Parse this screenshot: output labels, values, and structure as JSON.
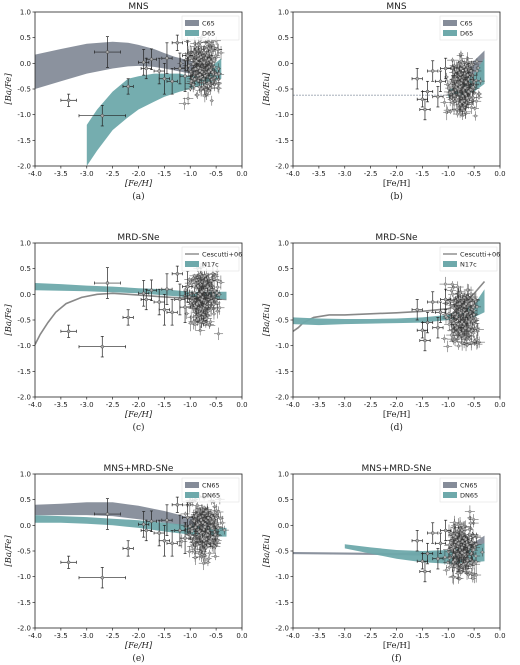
{
  "chart_data": [
    {
      "id": "a",
      "type": "band-scatter",
      "title": "MNS",
      "xlabel": "[Fe/H]",
      "ylabel": "[Ba/Fe]",
      "caption": "(a)",
      "xlim": [
        -4.0,
        0.0
      ],
      "ylim": [
        -2.0,
        1.0
      ],
      "xticks": [
        "-4.0",
        "-3.5",
        "-3.0",
        "-2.5",
        "-2.0",
        "-1.5",
        "-1.0",
        "-0.5",
        "0.0"
      ],
      "yticks": [
        "-2.0",
        "-1.5",
        "-1.0",
        "-0.5",
        "0.0",
        "0.5",
        "1.0"
      ],
      "legend": {
        "position": "top-right"
      },
      "series": [
        {
          "name": "C65",
          "kind": "band",
          "color": "#858c99",
          "x": [
            -4.0,
            -3.5,
            -3.0,
            -2.5,
            -2.2,
            -2.0,
            -1.7,
            -1.5,
            -1.3,
            -1.0,
            -0.8
          ],
          "upper": [
            0.17,
            0.28,
            0.38,
            0.42,
            0.4,
            0.36,
            0.28,
            0.2,
            0.13,
            0.05,
            0.0
          ],
          "lower": [
            -0.5,
            -0.35,
            -0.2,
            -0.1,
            -0.06,
            -0.05,
            -0.07,
            -0.1,
            -0.14,
            -0.2,
            -0.2
          ]
        },
        {
          "name": "D65",
          "kind": "band",
          "color": "#6ea9ab",
          "x": [
            -3.0,
            -2.8,
            -2.5,
            -2.2,
            -2.0,
            -1.7,
            -1.5,
            -1.2,
            -1.0,
            -0.7,
            -0.4
          ],
          "upper": [
            -1.2,
            -0.9,
            -0.55,
            -0.3,
            -0.25,
            -0.2,
            -0.2,
            -0.2,
            -0.25,
            -0.15,
            0.1
          ],
          "lower": [
            -2.0,
            -1.7,
            -1.3,
            -1.05,
            -0.9,
            -0.75,
            -0.65,
            -0.55,
            -0.5,
            -0.4,
            -0.3
          ]
        }
      ],
      "points": {
        "x": [
          -3.35,
          -2.7,
          -2.6,
          -2.2,
          -1.9,
          -1.85,
          -1.75,
          -1.6,
          -1.5,
          -1.45,
          -1.35,
          -1.25,
          -1.2,
          -1.1,
          -1.05
        ],
        "y": [
          -0.72,
          -1.02,
          0.22,
          -0.45,
          0.02,
          -0.1,
          0.08,
          -0.15,
          -0.3,
          0.1,
          -0.35,
          0.4,
          -0.1,
          -0.25,
          0.15
        ],
        "xerr": [
          0.15,
          0.45,
          0.25,
          0.1,
          0.1,
          0.1,
          0.1,
          0.1,
          0.1,
          0.1,
          0.1,
          0.1,
          0.1,
          0.1,
          0.1
        ],
        "yerr": [
          0.12,
          0.2,
          0.3,
          0.15,
          0.25,
          0.2,
          0.2,
          0.25,
          0.3,
          0.3,
          0.25,
          0.15,
          0.3,
          0.3,
          0.3
        ]
      },
      "cloud": {
        "x": [
          -1.2,
          -0.3
        ],
        "y": [
          -1.1,
          0.65
        ]
      }
    },
    {
      "id": "b",
      "type": "band-scatter",
      "title": "MNS",
      "xlabel": "[Fe/H]",
      "ylabel": "[Ba/Eu]",
      "caption": "(b)",
      "xlim": [
        -4.0,
        0.0
      ],
      "ylim": [
        -2.0,
        1.0
      ],
      "xticks": [
        "-4.0",
        "-3.5",
        "-3.0",
        "-2.5",
        "-2.0",
        "-1.5",
        "-1.0",
        "-0.5",
        "0.0"
      ],
      "yticks": [
        "-2.0",
        "-1.5",
        "-1.0",
        "-0.5",
        "0.0",
        "0.5",
        "1.0"
      ],
      "legend": {
        "position": "top-right"
      },
      "series": [
        {
          "name": "C65",
          "kind": "band",
          "color": "#858c99",
          "x": [
            -0.7,
            -0.5,
            -0.3
          ],
          "upper": [
            -0.2,
            0.05,
            0.25
          ],
          "lower": [
            -0.55,
            -0.45,
            -0.35
          ]
        },
        {
          "name": "D65",
          "kind": "band",
          "color": "#6ea9ab",
          "x": [
            -1.0,
            -0.7,
            -0.5,
            -0.3
          ],
          "upper": [
            -0.52,
            -0.4,
            -0.2,
            0.1
          ],
          "lower": [
            -0.66,
            -0.62,
            -0.55,
            -0.4
          ]
        },
        {
          "name": "",
          "kind": "line",
          "color": "#9aa4b0",
          "dashed": true,
          "x": [
            -4.0,
            -1.0
          ],
          "y": [
            -0.62,
            -0.62
          ]
        }
      ],
      "points": {
        "x": [
          -1.6,
          -1.5,
          -1.45,
          -1.4,
          -1.3,
          -1.2,
          -1.15,
          -1.05
        ],
        "y": [
          -0.3,
          -0.7,
          -0.9,
          -0.55,
          -0.15,
          -0.65,
          -0.35,
          -0.1
        ],
        "xerr": [
          0.1,
          0.1,
          0.1,
          0.1,
          0.1,
          0.1,
          0.1,
          0.1
        ],
        "yerr": [
          0.2,
          0.15,
          0.2,
          0.2,
          0.2,
          0.2,
          0.2,
          0.2
        ]
      },
      "cloud": {
        "x": [
          -1.15,
          -0.3
        ],
        "y": [
          -1.45,
          0.3
        ]
      }
    },
    {
      "id": "c",
      "type": "band-scatter",
      "title": "MRD-SNe",
      "xlabel": "[Fe/H]",
      "ylabel": "[Ba/Fe]",
      "caption": "(c)",
      "xlim": [
        -4.0,
        0.0
      ],
      "ylim": [
        -2.0,
        1.0
      ],
      "xticks": [
        "-4.0",
        "-3.5",
        "-3.0",
        "-2.5",
        "-2.0",
        "-1.5",
        "-1.0",
        "-0.5",
        "0.0"
      ],
      "yticks": [
        "-2.0",
        "-1.5",
        "-1.0",
        "-0.5",
        "0.0",
        "0.5",
        "1.0"
      ],
      "legend": {
        "position": "top-right"
      },
      "series": [
        {
          "name": "Cescutti+06",
          "kind": "line",
          "color": "#888888",
          "x": [
            -4.0,
            -3.9,
            -3.75,
            -3.6,
            -3.4,
            -3.1,
            -2.8,
            -2.5,
            -2.2,
            -1.9,
            -1.5,
            -1.2,
            -1.0,
            -0.6,
            -0.3
          ],
          "y": [
            -0.98,
            -0.78,
            -0.55,
            -0.35,
            -0.18,
            -0.06,
            0.0,
            0.02,
            0.0,
            -0.02,
            -0.05,
            -0.07,
            -0.08,
            -0.08,
            -0.1
          ]
        },
        {
          "name": "N17c",
          "kind": "band",
          "color": "#6ea9ab",
          "x": [
            -4.0,
            -3.5,
            -3.0,
            -2.5,
            -2.0,
            -1.5,
            -1.0,
            -0.5,
            -0.3
          ],
          "upper": [
            0.22,
            0.2,
            0.17,
            0.15,
            0.12,
            0.1,
            0.05,
            0.05,
            0.05
          ],
          "lower": [
            0.08,
            0.07,
            0.06,
            0.04,
            0.02,
            -0.02,
            -0.06,
            -0.08,
            -0.1
          ]
        }
      ],
      "points": {
        "x": [
          -3.35,
          -2.7,
          -2.6,
          -2.2,
          -1.9,
          -1.85,
          -1.75,
          -1.6,
          -1.5,
          -1.45,
          -1.35,
          -1.25,
          -1.2,
          -1.1,
          -1.05
        ],
        "y": [
          -0.72,
          -1.02,
          0.22,
          -0.45,
          0.02,
          -0.1,
          0.08,
          -0.15,
          -0.3,
          0.1,
          -0.35,
          0.4,
          -0.1,
          -0.25,
          0.15
        ],
        "xerr": [
          0.15,
          0.45,
          0.25,
          0.1,
          0.1,
          0.1,
          0.1,
          0.1,
          0.1,
          0.1,
          0.1,
          0.1,
          0.1,
          0.1,
          0.1
        ],
        "yerr": [
          0.12,
          0.2,
          0.3,
          0.15,
          0.25,
          0.2,
          0.2,
          0.25,
          0.3,
          0.3,
          0.25,
          0.15,
          0.3,
          0.3,
          0.3
        ]
      },
      "cloud": {
        "x": [
          -1.2,
          -0.3
        ],
        "y": [
          -1.1,
          0.65
        ]
      }
    },
    {
      "id": "d",
      "type": "band-scatter",
      "title": "MRD-SNe",
      "xlabel": "[Fe/H]",
      "ylabel": "[Ba/Eu]",
      "caption": "(d)",
      "xlim": [
        -4.0,
        0.0
      ],
      "ylim": [
        -2.0,
        1.0
      ],
      "xticks": [
        "-4.0",
        "-3.5",
        "-3.0",
        "-2.5",
        "-2.0",
        "-1.5",
        "-1.0",
        "-0.5",
        "0.0"
      ],
      "yticks": [
        "-2.0",
        "-1.5",
        "-1.0",
        "-0.5",
        "0.0",
        "0.5",
        "1.0"
      ],
      "legend": {
        "position": "top-right"
      },
      "series": [
        {
          "name": "Cescutti+06",
          "kind": "line",
          "color": "#888888",
          "x": [
            -4.0,
            -3.9,
            -3.8,
            -3.6,
            -3.3,
            -3.0,
            -2.5,
            -2.0,
            -1.5,
            -1.0,
            -0.6,
            -0.3
          ],
          "y": [
            -0.72,
            -0.65,
            -0.55,
            -0.45,
            -0.4,
            -0.4,
            -0.38,
            -0.36,
            -0.33,
            -0.28,
            -0.1,
            0.25
          ]
        },
        {
          "name": "N17c",
          "kind": "band",
          "color": "#6ea9ab",
          "x": [
            -4.0,
            -3.5,
            -3.0,
            -2.5,
            -2.0,
            -1.5,
            -1.0,
            -0.5,
            -0.3
          ],
          "upper": [
            -0.45,
            -0.47,
            -0.48,
            -0.48,
            -0.47,
            -0.45,
            -0.4,
            -0.2,
            0.1
          ],
          "lower": [
            -0.58,
            -0.6,
            -0.58,
            -0.57,
            -0.56,
            -0.55,
            -0.5,
            -0.45,
            -0.35
          ]
        }
      ],
      "points": {
        "x": [
          -1.6,
          -1.5,
          -1.45,
          -1.4,
          -1.3,
          -1.2,
          -1.15,
          -1.05
        ],
        "y": [
          -0.3,
          -0.7,
          -0.9,
          -0.55,
          -0.15,
          -0.65,
          -0.35,
          -0.1
        ],
        "xerr": [
          0.1,
          0.1,
          0.1,
          0.1,
          0.1,
          0.1,
          0.1,
          0.1
        ],
        "yerr": [
          0.2,
          0.15,
          0.2,
          0.2,
          0.2,
          0.2,
          0.2,
          0.2
        ]
      },
      "cloud": {
        "x": [
          -1.15,
          -0.3
        ],
        "y": [
          -1.45,
          0.3
        ]
      }
    },
    {
      "id": "e",
      "type": "band-scatter",
      "title": "MNS+MRD-SNe",
      "xlabel": "[Fe/H]",
      "ylabel": "[Ba/Fe]",
      "caption": "(e)",
      "xlim": [
        -4.0,
        0.0
      ],
      "ylim": [
        -2.0,
        1.0
      ],
      "xticks": [
        "-4.0",
        "-3.5",
        "-3.0",
        "-2.5",
        "-2.0",
        "-1.5",
        "-1.0",
        "-0.5",
        "0.0"
      ],
      "yticks": [
        "-2.0",
        "-1.5",
        "-1.0",
        "-0.5",
        "0.0",
        "0.5",
        "1.0"
      ],
      "legend": {
        "position": "top-right"
      },
      "series": [
        {
          "name": "CN65",
          "kind": "band",
          "color": "#858c99",
          "x": [
            -4.0,
            -3.5,
            -3.0,
            -2.5,
            -2.0,
            -1.5,
            -1.0,
            -0.6
          ],
          "upper": [
            0.4,
            0.42,
            0.45,
            0.45,
            0.38,
            0.28,
            0.15,
            0.05
          ],
          "lower": [
            0.2,
            0.2,
            0.2,
            0.18,
            0.12,
            0.05,
            -0.05,
            -0.1
          ]
        },
        {
          "name": "DN65",
          "kind": "band",
          "color": "#6ea9ab",
          "x": [
            -4.0,
            -3.5,
            -3.0,
            -2.5,
            -2.0,
            -1.5,
            -1.0,
            -0.5,
            -0.3
          ],
          "upper": [
            0.2,
            0.18,
            0.16,
            0.13,
            0.1,
            0.05,
            0.0,
            -0.05,
            -0.05
          ],
          "lower": [
            0.05,
            0.05,
            0.03,
            0.0,
            -0.05,
            -0.12,
            -0.18,
            -0.22,
            -0.22
          ]
        }
      ],
      "points": {
        "x": [
          -3.35,
          -2.7,
          -2.6,
          -2.2,
          -1.9,
          -1.85,
          -1.75,
          -1.6,
          -1.5,
          -1.45,
          -1.35,
          -1.25,
          -1.2,
          -1.1,
          -1.05
        ],
        "y": [
          -0.72,
          -1.02,
          0.22,
          -0.45,
          0.02,
          -0.1,
          0.08,
          -0.15,
          -0.3,
          0.1,
          -0.35,
          0.4,
          -0.1,
          -0.25,
          0.15
        ],
        "xerr": [
          0.15,
          0.45,
          0.25,
          0.1,
          0.1,
          0.1,
          0.1,
          0.1,
          0.1,
          0.1,
          0.1,
          0.1,
          0.1,
          0.1,
          0.1
        ],
        "yerr": [
          0.12,
          0.2,
          0.3,
          0.15,
          0.25,
          0.2,
          0.2,
          0.25,
          0.3,
          0.3,
          0.25,
          0.15,
          0.3,
          0.3,
          0.3
        ]
      },
      "cloud": {
        "x": [
          -1.2,
          -0.3
        ],
        "y": [
          -1.1,
          0.65
        ]
      }
    },
    {
      "id": "f",
      "type": "band-scatter",
      "title": "MNS+MRD-SNe",
      "xlabel": "[Fe/H]",
      "ylabel": "[Ba/Eu]",
      "caption": "(f)",
      "xlim": [
        -4.0,
        0.0
      ],
      "ylim": [
        -2.0,
        1.0
      ],
      "xticks": [
        "-4.0",
        "-3.5",
        "-3.0",
        "-2.5",
        "-2.0",
        "-1.5",
        "-1.0",
        "-0.5",
        "0.0"
      ],
      "yticks": [
        "-2.0",
        "-1.5",
        "-1.0",
        "-0.5",
        "0.0",
        "0.5",
        "1.0"
      ],
      "legend": {
        "position": "top-right"
      },
      "series": [
        {
          "name": "CN65",
          "kind": "band",
          "color": "#858c99",
          "x": [
            -4.0,
            -3.0,
            -2.0,
            -1.0,
            -0.6,
            -0.3
          ],
          "upper": [
            -0.52,
            -0.53,
            -0.54,
            -0.5,
            -0.4,
            -0.2
          ],
          "lower": [
            -0.56,
            -0.57,
            -0.58,
            -0.6,
            -0.58,
            -0.55
          ]
        },
        {
          "name": "DN65",
          "kind": "band",
          "color": "#6ea9ab",
          "x": [
            -3.0,
            -2.5,
            -2.0,
            -1.5,
            -1.0,
            -0.5,
            -0.3
          ],
          "upper": [
            -0.37,
            -0.43,
            -0.48,
            -0.5,
            -0.48,
            -0.4,
            -0.35
          ],
          "lower": [
            -0.45,
            -0.55,
            -0.65,
            -0.72,
            -0.75,
            -0.72,
            -0.7
          ]
        }
      ],
      "points": {
        "x": [
          -1.6,
          -1.5,
          -1.45,
          -1.4,
          -1.3,
          -1.2,
          -1.15,
          -1.05
        ],
        "y": [
          -0.3,
          -0.7,
          -0.9,
          -0.55,
          -0.15,
          -0.65,
          -0.35,
          -0.1
        ],
        "xerr": [
          0.1,
          0.1,
          0.1,
          0.1,
          0.1,
          0.1,
          0.1,
          0.1
        ],
        "yerr": [
          0.2,
          0.15,
          0.2,
          0.2,
          0.2,
          0.2,
          0.2,
          0.2
        ]
      },
      "cloud": {
        "x": [
          -1.15,
          -0.3
        ],
        "y": [
          -1.45,
          0.3
        ]
      }
    }
  ]
}
